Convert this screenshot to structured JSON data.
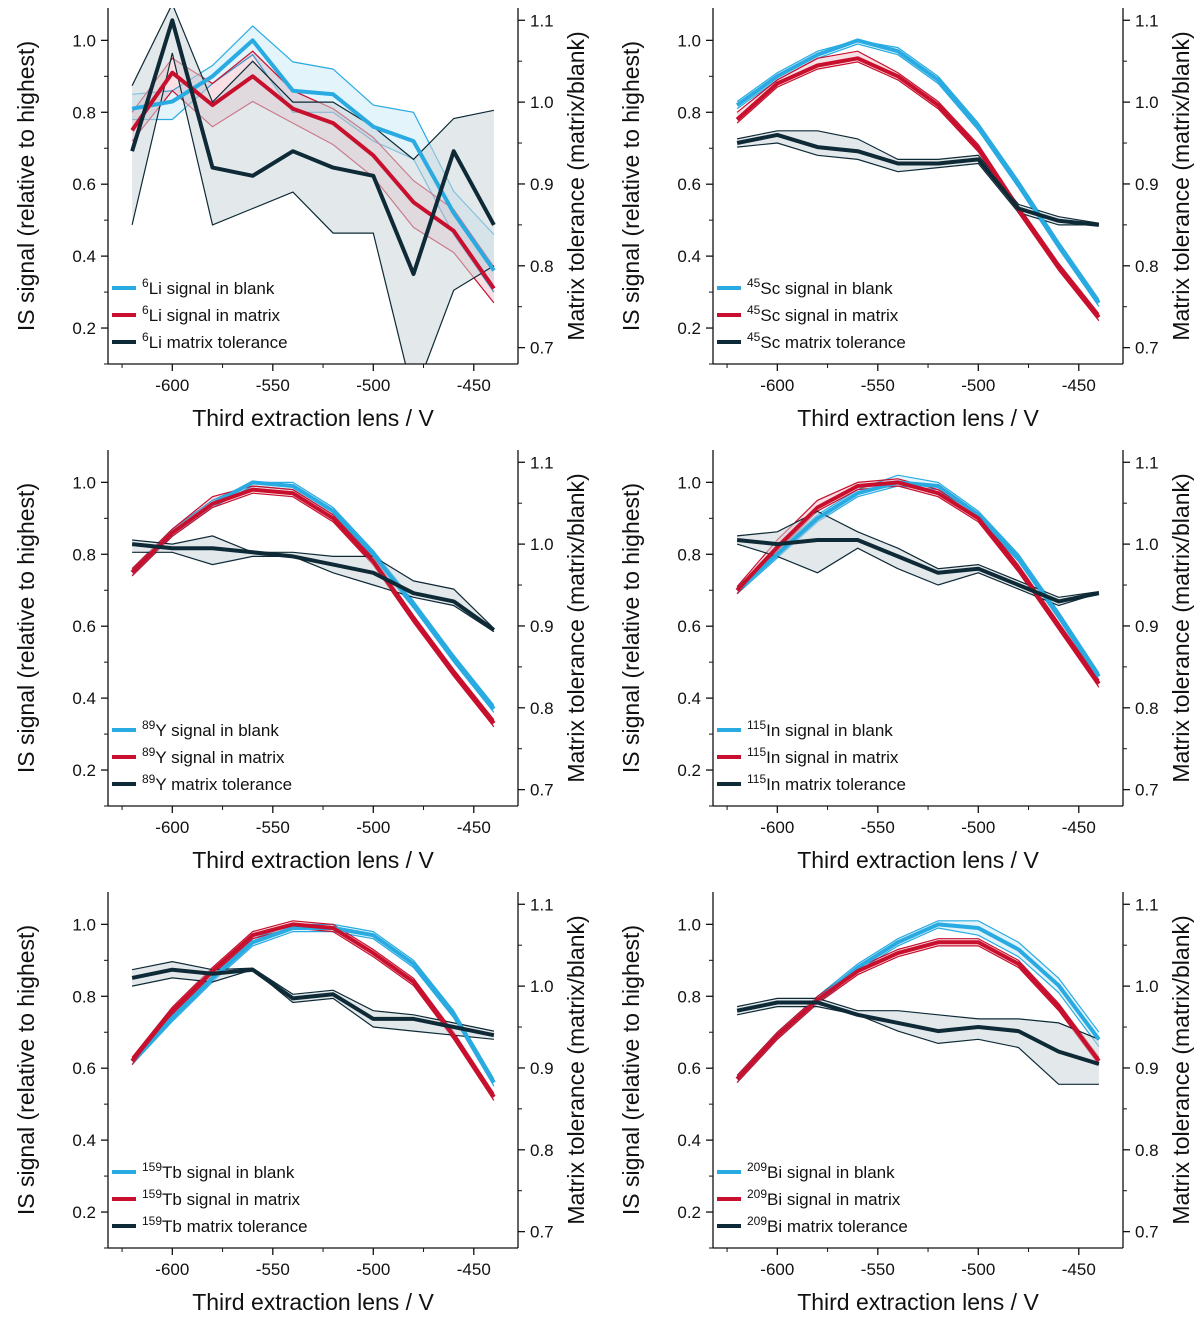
{
  "figure": {
    "colors": {
      "blank": "#29abe2",
      "matrix": "#c8102e",
      "tolerance": "#0e2a36",
      "band_tol": "#ccd6da"
    }
  },
  "chart_data": [
    {
      "type": "line",
      "isotope": {
        "mass": "6",
        "element": "Li"
      },
      "xlabel": "Third extraction lens / V",
      "ylabel_left": "IS signal (relative to highest)",
      "ylabel_right": "Matrix tolerance (matrix/blank)",
      "x": [
        -620,
        -600,
        -580,
        -560,
        -540,
        -520,
        -500,
        -480,
        -460,
        -440
      ],
      "xlim": [
        -632,
        -428
      ],
      "xticks": [
        -600,
        -550,
        -500,
        -450
      ],
      "ylim_left": [
        0.1,
        1.09
      ],
      "yticks_left": [
        0.2,
        0.4,
        0.6,
        0.8,
        1.0
      ],
      "ylim_right": [
        0.68,
        1.115
      ],
      "yticks_right": [
        0.7,
        0.8,
        0.9,
        1.0,
        1.1
      ],
      "grid": false,
      "legend_position": "bottom-left",
      "series": [
        {
          "name": "signal in blank",
          "axis": "left",
          "values": [
            0.81,
            0.83,
            0.9,
            1.0,
            0.86,
            0.85,
            0.76,
            0.72,
            0.52,
            0.36
          ],
          "band_low": [
            0.78,
            0.78,
            0.88,
            0.96,
            0.8,
            0.8,
            0.72,
            0.67,
            0.46,
            0.3
          ],
          "band_high": [
            0.85,
            0.86,
            0.93,
            1.04,
            0.94,
            0.92,
            0.82,
            0.8,
            0.58,
            0.46
          ]
        },
        {
          "name": "signal in matrix",
          "axis": "left",
          "values": [
            0.75,
            0.91,
            0.82,
            0.9,
            0.81,
            0.77,
            0.68,
            0.55,
            0.47,
            0.31
          ],
          "band_low": [
            0.72,
            0.86,
            0.76,
            0.83,
            0.77,
            0.71,
            0.62,
            0.48,
            0.41,
            0.27
          ],
          "band_high": [
            0.8,
            0.95,
            0.88,
            0.97,
            0.86,
            0.81,
            0.73,
            0.61,
            0.53,
            0.37
          ]
        },
        {
          "name": "matrix tolerance",
          "axis": "right",
          "values": [
            0.94,
            1.1,
            0.92,
            0.91,
            0.94,
            0.92,
            0.91,
            0.79,
            0.94,
            0.85
          ],
          "band_low": [
            0.85,
            1.06,
            0.85,
            0.87,
            0.89,
            0.84,
            0.84,
            0.64,
            0.77,
            0.8
          ],
          "band_high": [
            1.02,
            1.12,
            1.0,
            1.05,
            1.0,
            1.0,
            0.97,
            0.93,
            0.98,
            0.99
          ]
        }
      ],
      "legend": [
        "signal in blank",
        "signal in matrix",
        "matrix tolerance"
      ]
    },
    {
      "type": "line",
      "isotope": {
        "mass": "45",
        "element": "Sc"
      },
      "xlabel": "Third extraction lens / V",
      "ylabel_left": "IS signal (relative to highest)",
      "ylabel_right": "Matrix tolerance (matrix/blank)",
      "x": [
        -620,
        -600,
        -580,
        -560,
        -540,
        -520,
        -500,
        -480,
        -460,
        -440
      ],
      "xlim": [
        -632,
        -428
      ],
      "xticks": [
        -600,
        -550,
        -500,
        -450
      ],
      "ylim_left": [
        0.1,
        1.09
      ],
      "yticks_left": [
        0.2,
        0.4,
        0.6,
        0.8,
        1.0
      ],
      "ylim_right": [
        0.68,
        1.115
      ],
      "yticks_right": [
        0.7,
        0.8,
        0.9,
        1.0,
        1.1
      ],
      "grid": false,
      "legend_position": "bottom-left",
      "series": [
        {
          "name": "signal in blank",
          "axis": "left",
          "values": [
            0.82,
            0.9,
            0.96,
            1.0,
            0.97,
            0.89,
            0.76,
            0.6,
            0.43,
            0.27
          ],
          "band_low": [
            0.81,
            0.89,
            0.95,
            0.99,
            0.96,
            0.88,
            0.75,
            0.59,
            0.42,
            0.26
          ],
          "band_high": [
            0.83,
            0.91,
            0.97,
            1.0,
            0.98,
            0.9,
            0.77,
            0.61,
            0.44,
            0.28
          ]
        },
        {
          "name": "signal in matrix",
          "axis": "left",
          "values": [
            0.78,
            0.88,
            0.93,
            0.95,
            0.9,
            0.82,
            0.7,
            0.53,
            0.37,
            0.23
          ],
          "band_low": [
            0.77,
            0.87,
            0.92,
            0.94,
            0.89,
            0.81,
            0.69,
            0.52,
            0.36,
            0.22
          ],
          "band_high": [
            0.8,
            0.89,
            0.95,
            0.97,
            0.91,
            0.83,
            0.71,
            0.54,
            0.38,
            0.24
          ]
        },
        {
          "name": "matrix tolerance",
          "axis": "right",
          "values": [
            0.95,
            0.96,
            0.945,
            0.94,
            0.925,
            0.925,
            0.93,
            0.87,
            0.855,
            0.85
          ],
          "band_low": [
            0.945,
            0.95,
            0.935,
            0.93,
            0.915,
            0.92,
            0.925,
            0.865,
            0.85,
            0.85
          ],
          "band_high": [
            0.955,
            0.965,
            0.965,
            0.955,
            0.93,
            0.93,
            0.935,
            0.875,
            0.86,
            0.852
          ]
        }
      ],
      "legend": [
        "signal in blank",
        "signal in matrix",
        "matrix tolerance"
      ]
    },
    {
      "type": "line",
      "isotope": {
        "mass": "89",
        "element": "Y"
      },
      "xlabel": "Third extraction lens / V",
      "ylabel_left": "IS signal (relative to highest)",
      "ylabel_right": "Matrix tolerance (matrix/blank)",
      "x": [
        -620,
        -600,
        -580,
        -560,
        -540,
        -520,
        -500,
        -480,
        -460,
        -440
      ],
      "xlim": [
        -632,
        -428
      ],
      "xticks": [
        -600,
        -550,
        -500,
        -450
      ],
      "ylim_left": [
        0.1,
        1.09
      ],
      "yticks_left": [
        0.2,
        0.4,
        0.6,
        0.8,
        1.0
      ],
      "ylim_right": [
        0.68,
        1.115
      ],
      "yticks_right": [
        0.7,
        0.8,
        0.9,
        1.0,
        1.1
      ],
      "grid": false,
      "legend_position": "bottom-left",
      "series": [
        {
          "name": "signal in blank",
          "axis": "left",
          "values": [
            0.75,
            0.86,
            0.94,
            1.0,
            0.99,
            0.92,
            0.8,
            0.66,
            0.51,
            0.37
          ],
          "band_low": [
            0.74,
            0.85,
            0.93,
            0.99,
            0.98,
            0.91,
            0.79,
            0.65,
            0.5,
            0.36
          ],
          "band_high": [
            0.76,
            0.87,
            0.95,
            1.0,
            1.0,
            0.93,
            0.81,
            0.67,
            0.52,
            0.38
          ]
        },
        {
          "name": "signal in matrix",
          "axis": "left",
          "values": [
            0.75,
            0.86,
            0.94,
            0.98,
            0.97,
            0.9,
            0.78,
            0.62,
            0.47,
            0.33
          ],
          "band_low": [
            0.74,
            0.85,
            0.93,
            0.97,
            0.96,
            0.89,
            0.77,
            0.61,
            0.46,
            0.32
          ],
          "band_high": [
            0.76,
            0.87,
            0.96,
            0.99,
            0.98,
            0.91,
            0.79,
            0.63,
            0.48,
            0.34
          ]
        },
        {
          "name": "matrix tolerance",
          "axis": "right",
          "values": [
            1.0,
            0.995,
            0.995,
            0.99,
            0.985,
            0.975,
            0.965,
            0.94,
            0.93,
            0.895
          ],
          "band_low": [
            0.99,
            0.99,
            0.975,
            0.985,
            0.985,
            0.965,
            0.95,
            0.935,
            0.925,
            0.893
          ],
          "band_high": [
            1.005,
            1.0,
            1.01,
            0.99,
            0.99,
            0.985,
            0.985,
            0.955,
            0.945,
            0.897
          ]
        }
      ],
      "legend": [
        "signal in blank",
        "signal in matrix",
        "matrix tolerance"
      ]
    },
    {
      "type": "line",
      "isotope": {
        "mass": "115",
        "element": "In"
      },
      "xlabel": "Third extraction lens / V",
      "ylabel_left": "IS signal (relative to highest)",
      "ylabel_right": "Matrix tolerance (matrix/blank)",
      "x": [
        -620,
        -600,
        -580,
        -560,
        -540,
        -520,
        -500,
        -480,
        -460,
        -440
      ],
      "xlim": [
        -632,
        -428
      ],
      "xticks": [
        -600,
        -550,
        -500,
        -450
      ],
      "ylim_left": [
        0.1,
        1.09
      ],
      "yticks_left": [
        0.2,
        0.4,
        0.6,
        0.8,
        1.0
      ],
      "ylim_right": [
        0.68,
        1.115
      ],
      "yticks_right": [
        0.7,
        0.8,
        0.9,
        1.0,
        1.1
      ],
      "grid": false,
      "legend_position": "bottom-left",
      "series": [
        {
          "name": "signal in blank",
          "axis": "left",
          "values": [
            0.7,
            0.8,
            0.9,
            0.97,
            1.0,
            0.99,
            0.91,
            0.79,
            0.63,
            0.46
          ],
          "band_low": [
            0.69,
            0.79,
            0.89,
            0.96,
            0.99,
            0.98,
            0.9,
            0.78,
            0.62,
            0.45
          ],
          "band_high": [
            0.71,
            0.81,
            0.91,
            0.98,
            1.02,
            1.0,
            0.92,
            0.8,
            0.64,
            0.47
          ]
        },
        {
          "name": "signal in matrix",
          "axis": "left",
          "values": [
            0.7,
            0.82,
            0.93,
            0.99,
            1.0,
            0.97,
            0.9,
            0.76,
            0.6,
            0.44
          ],
          "band_low": [
            0.69,
            0.81,
            0.92,
            0.98,
            0.99,
            0.96,
            0.89,
            0.75,
            0.59,
            0.43
          ],
          "band_high": [
            0.71,
            0.84,
            0.95,
            1.0,
            1.01,
            0.98,
            0.91,
            0.77,
            0.61,
            0.45
          ]
        },
        {
          "name": "matrix tolerance",
          "axis": "right",
          "values": [
            1.005,
            1.0,
            1.005,
            1.005,
            0.985,
            0.965,
            0.97,
            0.95,
            0.93,
            0.94
          ],
          "band_low": [
            1.0,
            0.985,
            0.965,
            0.995,
            0.97,
            0.95,
            0.965,
            0.945,
            0.925,
            0.94
          ],
          "band_high": [
            1.01,
            1.015,
            1.04,
            1.015,
            0.995,
            0.97,
            0.975,
            0.955,
            0.935,
            0.942
          ]
        }
      ],
      "legend": [
        "signal in blank",
        "signal in matrix",
        "matrix tolerance"
      ]
    },
    {
      "type": "line",
      "isotope": {
        "mass": "159",
        "element": "Tb"
      },
      "xlabel": "Third extraction lens / V",
      "ylabel_left": "IS signal (relative to highest)",
      "ylabel_right": "Matrix tolerance (matrix/blank)",
      "x": [
        -620,
        -600,
        -580,
        -560,
        -540,
        -520,
        -500,
        -480,
        -460,
        -440
      ],
      "xlim": [
        -632,
        -428
      ],
      "xticks": [
        -600,
        -550,
        -500,
        -450
      ],
      "ylim_left": [
        0.1,
        1.09
      ],
      "yticks_left": [
        0.2,
        0.4,
        0.6,
        0.8,
        1.0
      ],
      "ylim_right": [
        0.68,
        1.115
      ],
      "yticks_right": [
        0.7,
        0.8,
        0.9,
        1.0,
        1.1
      ],
      "grid": false,
      "legend_position": "bottom-left",
      "series": [
        {
          "name": "signal in blank",
          "axis": "left",
          "values": [
            0.62,
            0.74,
            0.85,
            0.95,
            0.99,
            0.99,
            0.97,
            0.89,
            0.75,
            0.56
          ],
          "band_low": [
            0.61,
            0.73,
            0.84,
            0.94,
            0.98,
            0.98,
            0.96,
            0.88,
            0.74,
            0.55
          ],
          "band_high": [
            0.63,
            0.75,
            0.86,
            0.96,
            1.0,
            1.0,
            0.98,
            0.9,
            0.76,
            0.57
          ]
        },
        {
          "name": "signal in matrix",
          "axis": "left",
          "values": [
            0.62,
            0.76,
            0.87,
            0.97,
            1.0,
            0.99,
            0.92,
            0.84,
            0.69,
            0.52
          ],
          "band_low": [
            0.61,
            0.75,
            0.86,
            0.96,
            0.99,
            0.98,
            0.91,
            0.83,
            0.68,
            0.51
          ],
          "band_high": [
            0.63,
            0.77,
            0.88,
            0.98,
            1.01,
            1.0,
            0.93,
            0.85,
            0.7,
            0.53
          ]
        },
        {
          "name": "matrix tolerance",
          "axis": "right",
          "values": [
            1.01,
            1.02,
            1.015,
            1.02,
            0.985,
            0.99,
            0.96,
            0.96,
            0.95,
            0.94
          ],
          "band_low": [
            1.0,
            1.01,
            1.005,
            1.02,
            0.98,
            0.985,
            0.95,
            0.945,
            0.94,
            0.935
          ],
          "band_high": [
            1.02,
            1.03,
            1.02,
            1.022,
            0.99,
            0.995,
            0.97,
            0.965,
            0.955,
            0.945
          ]
        }
      ],
      "legend": [
        "signal in blank",
        "signal in matrix",
        "matrix tolerance"
      ]
    },
    {
      "type": "line",
      "isotope": {
        "mass": "209",
        "element": "Bi"
      },
      "xlabel": "Third extraction lens / V",
      "ylabel_left": "IS signal (relative to highest)",
      "ylabel_right": "Matrix tolerance (matrix/blank)",
      "x": [
        -620,
        -600,
        -580,
        -560,
        -540,
        -520,
        -500,
        -480,
        -460,
        -440
      ],
      "xlim": [
        -632,
        -428
      ],
      "xticks": [
        -600,
        -550,
        -500,
        -450
      ],
      "ylim_left": [
        0.1,
        1.09
      ],
      "yticks_left": [
        0.2,
        0.4,
        0.6,
        0.8,
        1.0
      ],
      "ylim_right": [
        0.68,
        1.115
      ],
      "yticks_right": [
        0.7,
        0.8,
        0.9,
        1.0,
        1.1
      ],
      "grid": false,
      "legend_position": "bottom-left",
      "series": [
        {
          "name": "signal in blank",
          "axis": "left",
          "values": [
            0.57,
            0.69,
            0.79,
            0.88,
            0.95,
            1.0,
            0.99,
            0.93,
            0.83,
            0.68
          ],
          "band_low": [
            0.56,
            0.68,
            0.78,
            0.87,
            0.94,
            0.99,
            0.97,
            0.91,
            0.81,
            0.66
          ],
          "band_high": [
            0.58,
            0.7,
            0.8,
            0.89,
            0.96,
            1.01,
            1.01,
            0.95,
            0.85,
            0.7
          ]
        },
        {
          "name": "signal in matrix",
          "axis": "left",
          "values": [
            0.57,
            0.69,
            0.79,
            0.87,
            0.92,
            0.95,
            0.95,
            0.89,
            0.77,
            0.62
          ],
          "band_low": [
            0.56,
            0.68,
            0.78,
            0.86,
            0.91,
            0.94,
            0.94,
            0.88,
            0.76,
            0.61
          ],
          "band_high": [
            0.58,
            0.7,
            0.8,
            0.88,
            0.93,
            0.96,
            0.96,
            0.9,
            0.78,
            0.63
          ]
        },
        {
          "name": "matrix tolerance",
          "axis": "right",
          "values": [
            0.97,
            0.98,
            0.98,
            0.965,
            0.955,
            0.945,
            0.95,
            0.945,
            0.92,
            0.905
          ],
          "band_low": [
            0.965,
            0.975,
            0.975,
            0.965,
            0.945,
            0.93,
            0.935,
            0.925,
            0.88,
            0.88
          ],
          "band_high": [
            0.975,
            0.985,
            0.985,
            0.97,
            0.97,
            0.965,
            0.96,
            0.96,
            0.955,
            0.935
          ]
        }
      ],
      "legend": [
        "signal in blank",
        "signal in matrix",
        "matrix tolerance"
      ]
    }
  ]
}
